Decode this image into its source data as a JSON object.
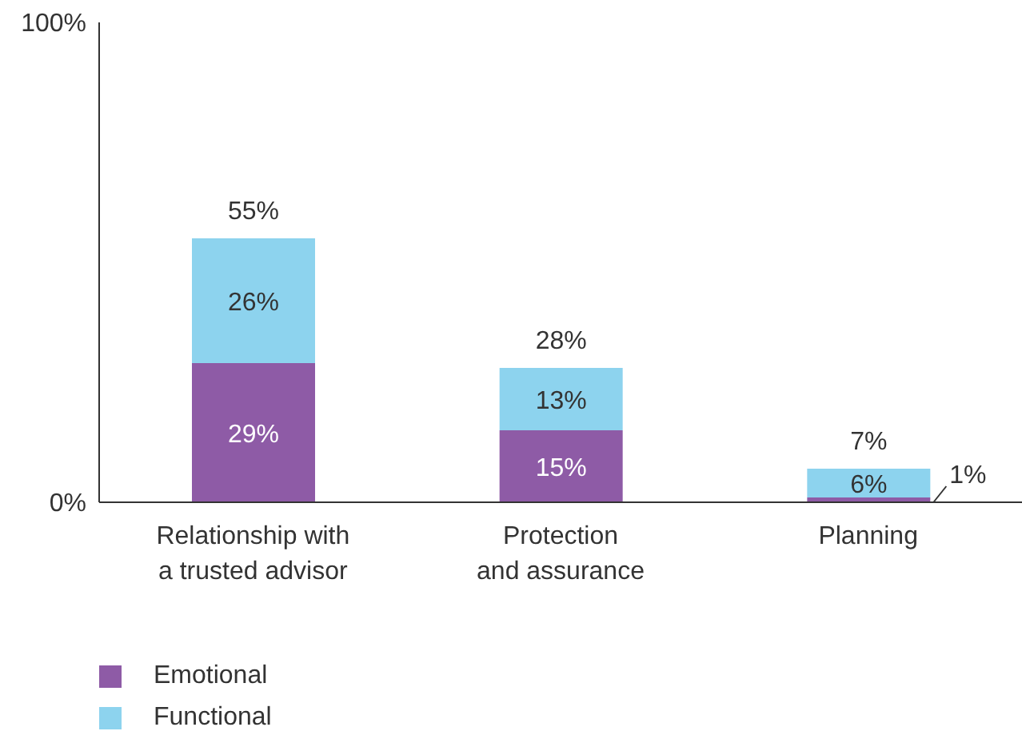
{
  "chart_data": {
    "type": "bar",
    "stacked": true,
    "categories": [
      "Relationship with\na trusted advisor",
      "Protection\nand assurance",
      "Planning"
    ],
    "series": [
      {
        "name": "Emotional",
        "color": "#8e5ba6",
        "values": [
          29,
          15,
          1
        ],
        "value_labels": [
          "29%",
          "15%",
          "1%"
        ]
      },
      {
        "name": "Functional",
        "color": "#8dd3ee",
        "values": [
          26,
          13,
          6
        ],
        "value_labels": [
          "26%",
          "13%",
          "6%"
        ]
      }
    ],
    "totals": [
      "55%",
      "28%",
      "7%"
    ],
    "ylim": [
      0,
      100
    ],
    "yticks": [
      {
        "value": 0,
        "label": "0%"
      },
      {
        "value": 100,
        "label": "100%"
      }
    ],
    "grid": false,
    "legend": "bottom left"
  }
}
